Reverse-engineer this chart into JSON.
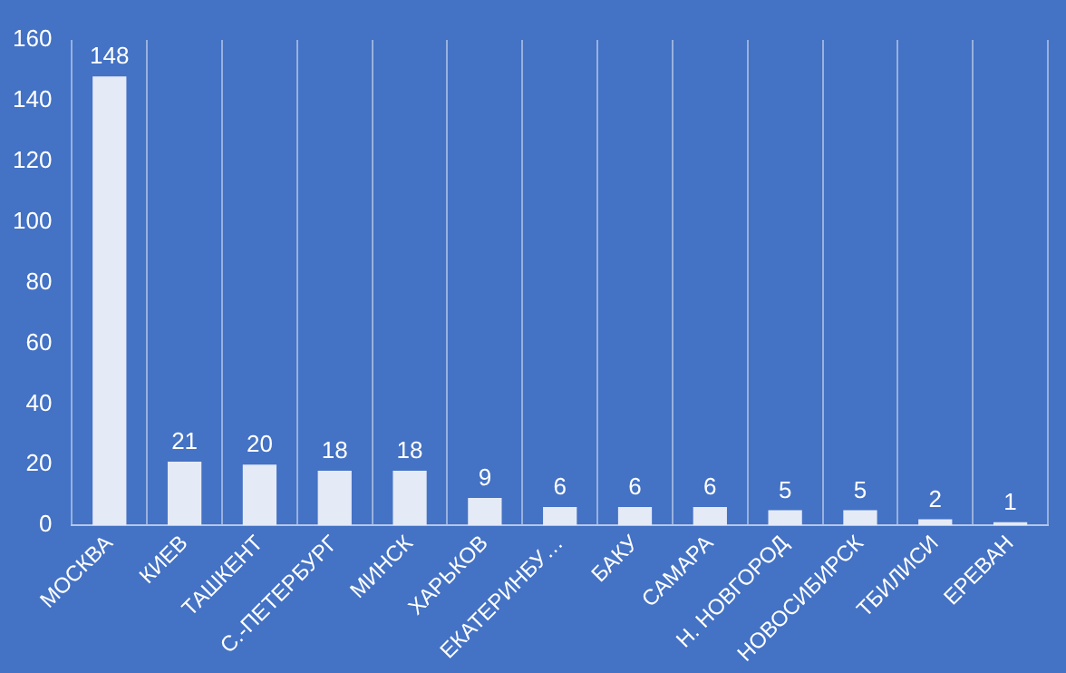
{
  "chart_data": {
    "type": "bar",
    "categories": [
      "МОСКВА",
      "КИЕВ",
      "ТАШКЕНТ",
      "С.-ПЕТЕРБУРГ",
      "МИНСК",
      "ХАРЬКОВ",
      "ЕКАТЕРИНБУ…",
      "БАКУ",
      "САМАРА",
      "Н. НОВГОРОД",
      "НОВОСИБИРСК",
      "ТБИЛИСИ",
      "ЕРЕВАН"
    ],
    "values": [
      148,
      21,
      20,
      18,
      18,
      9,
      6,
      6,
      6,
      5,
      5,
      2,
      1
    ],
    "color": "#e4eaf6",
    "ylim": [
      0,
      160
    ],
    "yticks": [
      0,
      20,
      40,
      60,
      80,
      100,
      120,
      140,
      160
    ],
    "grid": "x",
    "data_labels": true,
    "legend": false
  }
}
